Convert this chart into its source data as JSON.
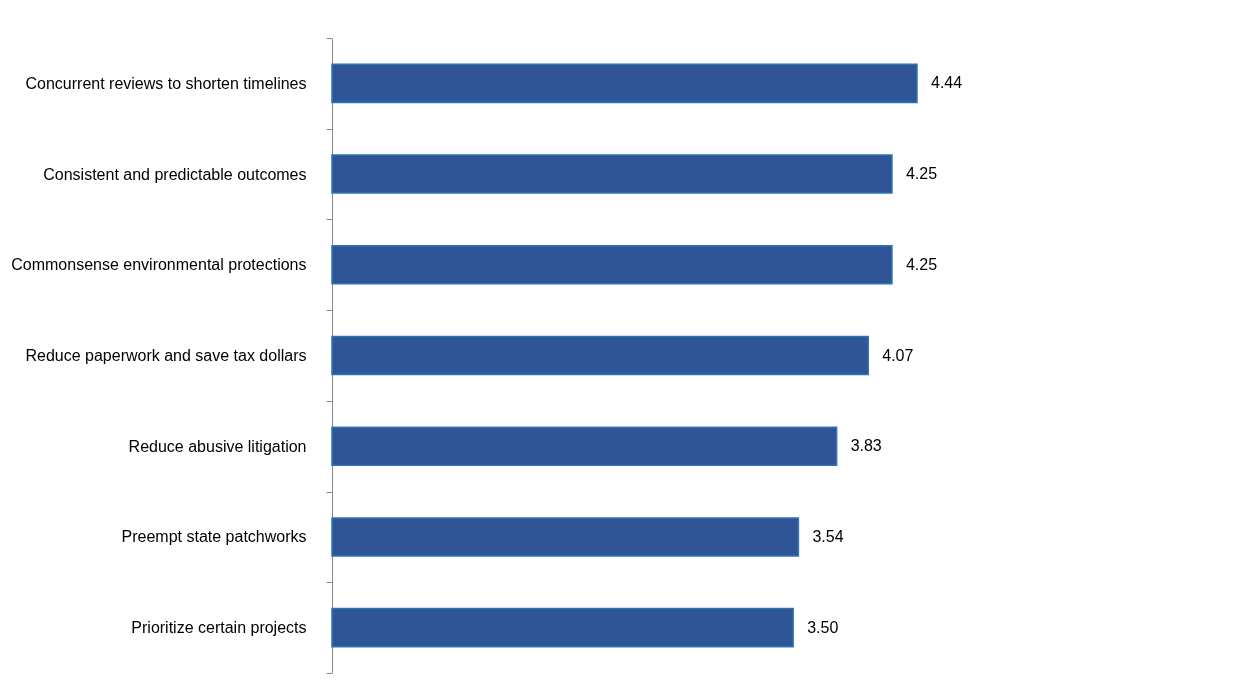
{
  "chart_data": {
    "type": "bar",
    "orientation": "horizontal",
    "categories": [
      "Concurrent reviews to shorten timelines",
      "Consistent and predictable outcomes",
      "Commonsense environmental protections",
      "Reduce paperwork and save tax dollars",
      "Reduce abusive litigation",
      "Preempt state patchworks",
      "Prioritize certain projects"
    ],
    "values": [
      4.44,
      4.25,
      4.25,
      4.07,
      3.83,
      3.54,
      3.5
    ],
    "value_labels": [
      "4.44",
      "4.25",
      "4.25",
      "4.07",
      "3.83",
      "3.54",
      "3.50"
    ],
    "color": "#2f5597"
  }
}
